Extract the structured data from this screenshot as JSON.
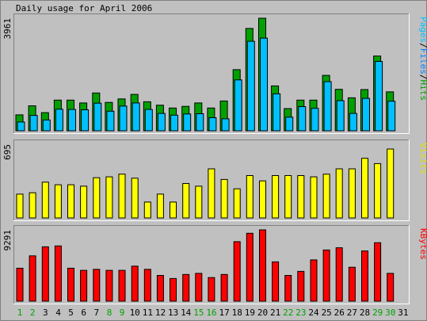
{
  "chart_data": {
    "type": "bar",
    "title": "Daily usage for April 2006",
    "x": [
      "1",
      "2",
      "3",
      "4",
      "5",
      "6",
      "7",
      "8",
      "9",
      "10",
      "11",
      "12",
      "13",
      "14",
      "15",
      "16",
      "17",
      "18",
      "19",
      "20",
      "21",
      "22",
      "23",
      "24",
      "25",
      "26",
      "27",
      "28",
      "29",
      "30",
      "31"
    ],
    "weekend_days": [
      "1",
      "2",
      "8",
      "9",
      "15",
      "16",
      "22",
      "23",
      "29",
      "30"
    ],
    "panels": [
      {
        "id": "pages-files-hits",
        "max_label": "3961",
        "ylim": [
          0,
          3961
        ],
        "legend": [
          "Pages",
          "/",
          "Files",
          "/",
          "Hits"
        ],
        "legend_colors": [
          "#00c0ff",
          "#000000",
          "#0080ff",
          "#000000",
          "#00a000"
        ],
        "series": [
          {
            "name": "Hits",
            "color": "#00a000",
            "values": [
              560,
              880,
              640,
              1080,
              1080,
              980,
              1330,
              1000,
              1120,
              1280,
              1020,
              900,
              800,
              860,
              980,
              800,
              1050,
              2150,
              3600,
              3961,
              1580,
              780,
              1080,
              1080,
              1950,
              1460,
              1160,
              1450,
              2630,
              1370,
              0
            ]
          },
          {
            "name": "Files",
            "color": "#00c0ff",
            "values": [
              310,
              540,
              380,
              760,
              750,
              740,
              970,
              690,
              870,
              980,
              750,
              610,
              550,
              590,
              600,
              460,
              420,
              1790,
              3150,
              3260,
              1300,
              480,
              850,
              790,
              1730,
              1060,
              610,
              1140,
              2440,
              1040,
              0
            ]
          }
        ]
      },
      {
        "id": "visits",
        "max_label": "695",
        "ylim": [
          0,
          695
        ],
        "legend": [
          "Visits"
        ],
        "legend_colors": [
          "#e0e000"
        ],
        "series": [
          {
            "name": "Visits",
            "color": "#ffff00",
            "values": [
              225,
              238,
              338,
              313,
              313,
              300,
              380,
              388,
              413,
              375,
              150,
              225,
              150,
              325,
              300,
              463,
              363,
              275,
              400,
              350,
              400,
              400,
              400,
              388,
              413,
              463,
              463,
              563,
              513,
              650,
              0
            ]
          }
        ]
      },
      {
        "id": "kbytes",
        "max_label": "9291",
        "ylim": [
          0,
          9291
        ],
        "legend": [
          "KBytes"
        ],
        "legend_colors": [
          "#ff0000"
        ],
        "series": [
          {
            "name": "KBytes",
            "color": "#ff0000",
            "values": [
              4290,
              5900,
              7080,
              7200,
              4290,
              4020,
              4150,
              4020,
              4020,
              4560,
              4150,
              3350,
              2950,
              3480,
              3620,
              3080,
              3480,
              7750,
              8850,
              9291,
              5120,
              3350,
              3880,
              5380,
              6670,
              6960,
              4420,
              6540,
              7620,
              3620,
              0
            ]
          }
        ]
      }
    ]
  }
}
